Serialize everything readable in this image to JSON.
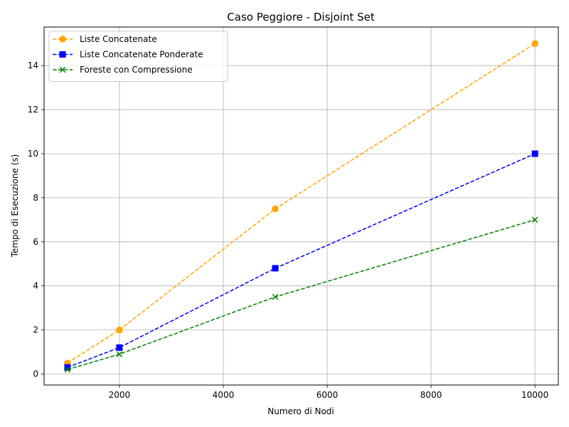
{
  "chart_data": {
    "type": "line",
    "title": "Caso Peggiore - Disjoint Set",
    "xlabel": "Numero di Nodi",
    "ylabel": "Tempo di Esecuzione (s)",
    "x": [
      1000,
      2000,
      5000,
      10000
    ],
    "xlim": [
      550,
      10450
    ],
    "ylim": [
      -0.5,
      15.75
    ],
    "xticks": [
      2000,
      4000,
      6000,
      8000,
      10000
    ],
    "yticks": [
      0,
      2,
      4,
      6,
      8,
      10,
      12,
      14
    ],
    "grid": true,
    "legend_position": "top-left",
    "series": [
      {
        "name": "Liste Concatenate",
        "values": [
          0.5,
          2.0,
          7.5,
          15.0
        ],
        "color": "#ffa500",
        "marker": "circle",
        "line_style": "dashed"
      },
      {
        "name": "Liste Concatenate Ponderate",
        "values": [
          0.3,
          1.2,
          4.8,
          10.0
        ],
        "color": "#0000ff",
        "marker": "square",
        "line_style": "dashed"
      },
      {
        "name": "Foreste con Compressione",
        "values": [
          0.2,
          0.9,
          3.5,
          7.0
        ],
        "color": "#008000",
        "marker": "x",
        "line_style": "dashed"
      }
    ]
  }
}
